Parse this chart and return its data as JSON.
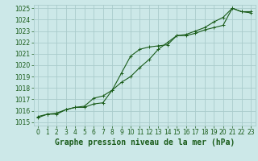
{
  "title": "Graphe pression niveau de la mer (hPa)",
  "bg_color": "#cce8e8",
  "grid_color": "#aacccc",
  "line_color": "#1a5c1a",
  "series1": [
    1015.5,
    1015.7,
    1015.8,
    1016.1,
    1016.3,
    1016.4,
    1017.1,
    1017.3,
    1017.8,
    1019.3,
    1020.8,
    1021.4,
    1021.6,
    1021.7,
    1021.8,
    1022.6,
    1022.6,
    1022.8,
    1023.1,
    1023.3,
    1023.5,
    1025.0,
    1024.7,
    1024.7
  ],
  "series2": [
    1015.4,
    1015.7,
    1015.7,
    1016.1,
    1016.3,
    1016.3,
    1016.6,
    1016.7,
    1017.8,
    1018.5,
    1019.0,
    1019.8,
    1020.5,
    1021.4,
    1022.0,
    1022.6,
    1022.7,
    1023.0,
    1023.3,
    1023.8,
    1024.2,
    1025.0,
    1024.7,
    1024.6
  ],
  "ylim_min": 1015,
  "ylim_max": 1025,
  "yticks": [
    1015,
    1016,
    1017,
    1018,
    1019,
    1020,
    1021,
    1022,
    1023,
    1024,
    1025
  ],
  "xticks": [
    0,
    1,
    2,
    3,
    4,
    5,
    6,
    7,
    8,
    9,
    10,
    11,
    12,
    13,
    14,
    15,
    16,
    17,
    18,
    19,
    20,
    21,
    22,
    23
  ],
  "title_fontsize": 7,
  "tick_fontsize": 5.5
}
